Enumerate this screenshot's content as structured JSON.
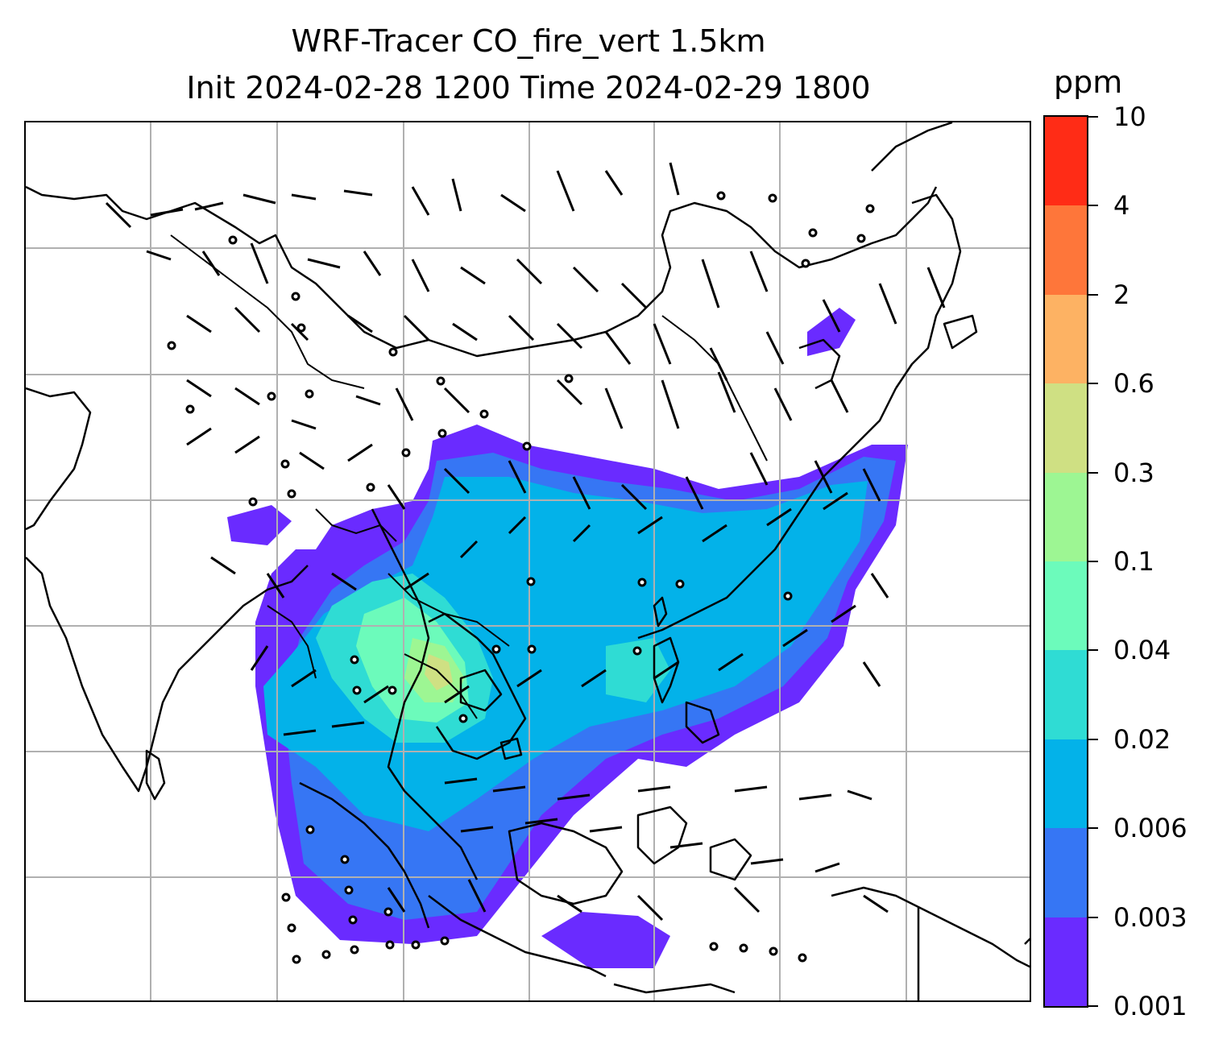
{
  "title": {
    "line1": "WRF-Tracer CO_fire_vert 1.5km",
    "line2": "Init 2024-02-28 1200 Time 2024-02-29 1800"
  },
  "colorbar": {
    "unit": "ppm",
    "levels": [
      "0.001",
      "0.003",
      "0.006",
      "0.02",
      "0.04",
      "0.1",
      "0.3",
      "0.6",
      "2",
      "4",
      "10"
    ],
    "colors": [
      "#6a2bff",
      "#3676f4",
      "#03b2e9",
      "#2fdcd4",
      "#6cfbbb",
      "#9df693",
      "#cfe083",
      "#fdb263",
      "#fe763a",
      "#ff2c16"
    ]
  },
  "map": {
    "gridlines": true,
    "features": [
      "coastlines",
      "country-borders",
      "wind-barbs",
      "calm-circles"
    ],
    "field": "CO_fire_vert"
  }
}
